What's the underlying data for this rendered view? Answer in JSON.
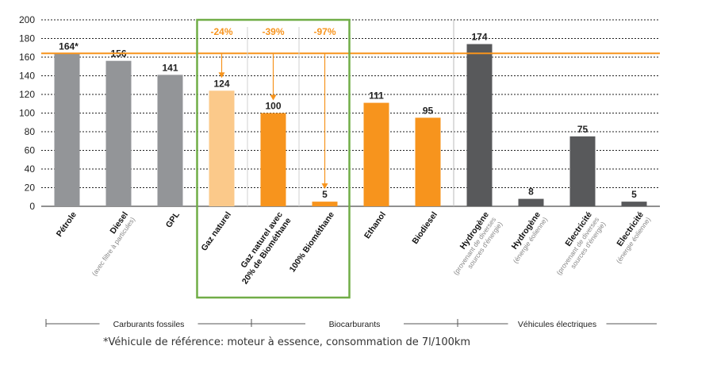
{
  "chart_data": {
    "type": "bar",
    "ylim": [
      0,
      200
    ],
    "yticks": [
      0,
      20,
      40,
      60,
      80,
      100,
      120,
      140,
      160,
      180,
      200
    ],
    "grid": true,
    "reference_line": 164,
    "categories": [
      {
        "label": "Pétrole",
        "sub": "",
        "value": 164,
        "value_label": "164*",
        "color": "#939598",
        "group": "Carburants fossiles"
      },
      {
        "label": "Diesel",
        "sub": "(avec filtre à particules)",
        "value": 156,
        "value_label": "156",
        "color": "#939598",
        "group": "Carburants fossiles"
      },
      {
        "label": "GPL",
        "sub": "",
        "value": 141,
        "value_label": "141",
        "color": "#939598",
        "group": "Carburants fossiles"
      },
      {
        "label": "Gaz naturel",
        "sub": "",
        "value": 124,
        "value_label": "124",
        "color": "#fbc98a",
        "group": "Biocarburants"
      },
      {
        "label": "Gaz naturel avec",
        "label2": "20% de Biométhane",
        "sub": "",
        "value": 100,
        "value_label": "100",
        "color": "#f7941d",
        "group": "Biocarburants"
      },
      {
        "label": "100% Biométhane",
        "sub": "",
        "value": 5,
        "value_label": "5",
        "color": "#f7941d",
        "group": "Biocarburants"
      },
      {
        "label": "Ethanol",
        "sub": "",
        "value": 111,
        "value_label": "111",
        "color": "#f7941d",
        "group": "Biocarburants"
      },
      {
        "label": "Biodiesel",
        "sub": "",
        "value": 95,
        "value_label": "95",
        "color": "#f7941d",
        "group": "Biocarburants"
      },
      {
        "label": "Hydrogène",
        "sub": "(provenant de diverses",
        "sub2": "sources d'énergie)",
        "value": 174,
        "value_label": "174",
        "color": "#58595b",
        "group": "Véhicules électriques"
      },
      {
        "label": "Hydrogène",
        "sub": "(énergie éolienne)",
        "value": 8,
        "value_label": "8",
        "color": "#58595b",
        "group": "Véhicules électriques"
      },
      {
        "label": "Electricité",
        "sub": "(provenant de diverses",
        "sub2": "sources d'énergie)",
        "value": 75,
        "value_label": "75",
        "color": "#58595b",
        "group": "Véhicules électriques"
      },
      {
        "label": "Electricité",
        "sub": "(énergie éolienne)",
        "value": 5,
        "value_label": "5",
        "color": "#58595b",
        "group": "Véhicules électriques"
      }
    ],
    "annotations": [
      {
        "text": "-24%",
        "target_index": 3
      },
      {
        "text": "-39%",
        "target_index": 4
      },
      {
        "text": "-97%",
        "target_index": 5
      }
    ],
    "groups": [
      "Carburants fossiles",
      "Biocarburants",
      "Véhicules électriques"
    ],
    "highlight_color": "#70ad47",
    "reference_color": "#f7941d"
  },
  "footnote": "*Véhicule de référence: moteur à essence, consommation de 7l/100km"
}
